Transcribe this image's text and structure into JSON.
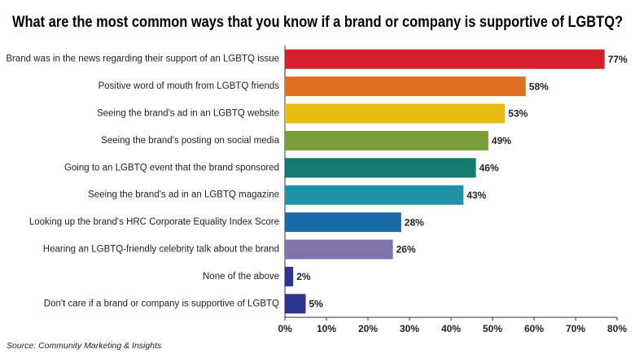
{
  "chart_data": {
    "type": "bar",
    "orientation": "horizontal",
    "title": "What are the most common ways that you know if a brand or company is supportive of LGBTQ?",
    "source": "Source: Community Marketing & Insights",
    "categories": [
      "Brand was in the news regarding their support of an LGBTQ issue",
      "Positive word of mouth from LGBTQ friends",
      "Seeing the brand's ad in an LGBTQ website",
      "Seeing the brand's posting on social media",
      "Going to an LGBTQ event that the brand sponsored",
      "Seeing the brand's ad in an LGBTQ magazine",
      "Looking up the brand's HRC Corporate Equality Index Score",
      "Hearing an LGBTQ-friendly celebrity talk about the brand",
      "None of the above",
      "Don't care if a brand or company is supportive of LGBTQ"
    ],
    "values": [
      77,
      58,
      53,
      49,
      46,
      43,
      28,
      26,
      2,
      5
    ],
    "value_labels": [
      "77%",
      "58%",
      "53%",
      "49%",
      "46%",
      "43%",
      "28%",
      "26%",
      "2%",
      "5%"
    ],
    "colors": [
      "#d7202e",
      "#e07020",
      "#e8bb10",
      "#7a9e3a",
      "#127a6e",
      "#1e93a8",
      "#1a6aa8",
      "#7f75a8",
      "#2b3590",
      "#2b3590"
    ],
    "xlim": [
      0,
      80
    ],
    "xticks": [
      {
        "value": 0,
        "label": "0%"
      },
      {
        "value": 10,
        "label": "10%"
      },
      {
        "value": 20,
        "label": "20%"
      },
      {
        "value": 30,
        "label": "30%"
      },
      {
        "value": 40,
        "label": "40%"
      },
      {
        "value": 50,
        "label": "50%"
      },
      {
        "value": 60,
        "label": "60%"
      },
      {
        "value": 70,
        "label": "70%"
      },
      {
        "value": 80,
        "label": "80%"
      }
    ]
  }
}
